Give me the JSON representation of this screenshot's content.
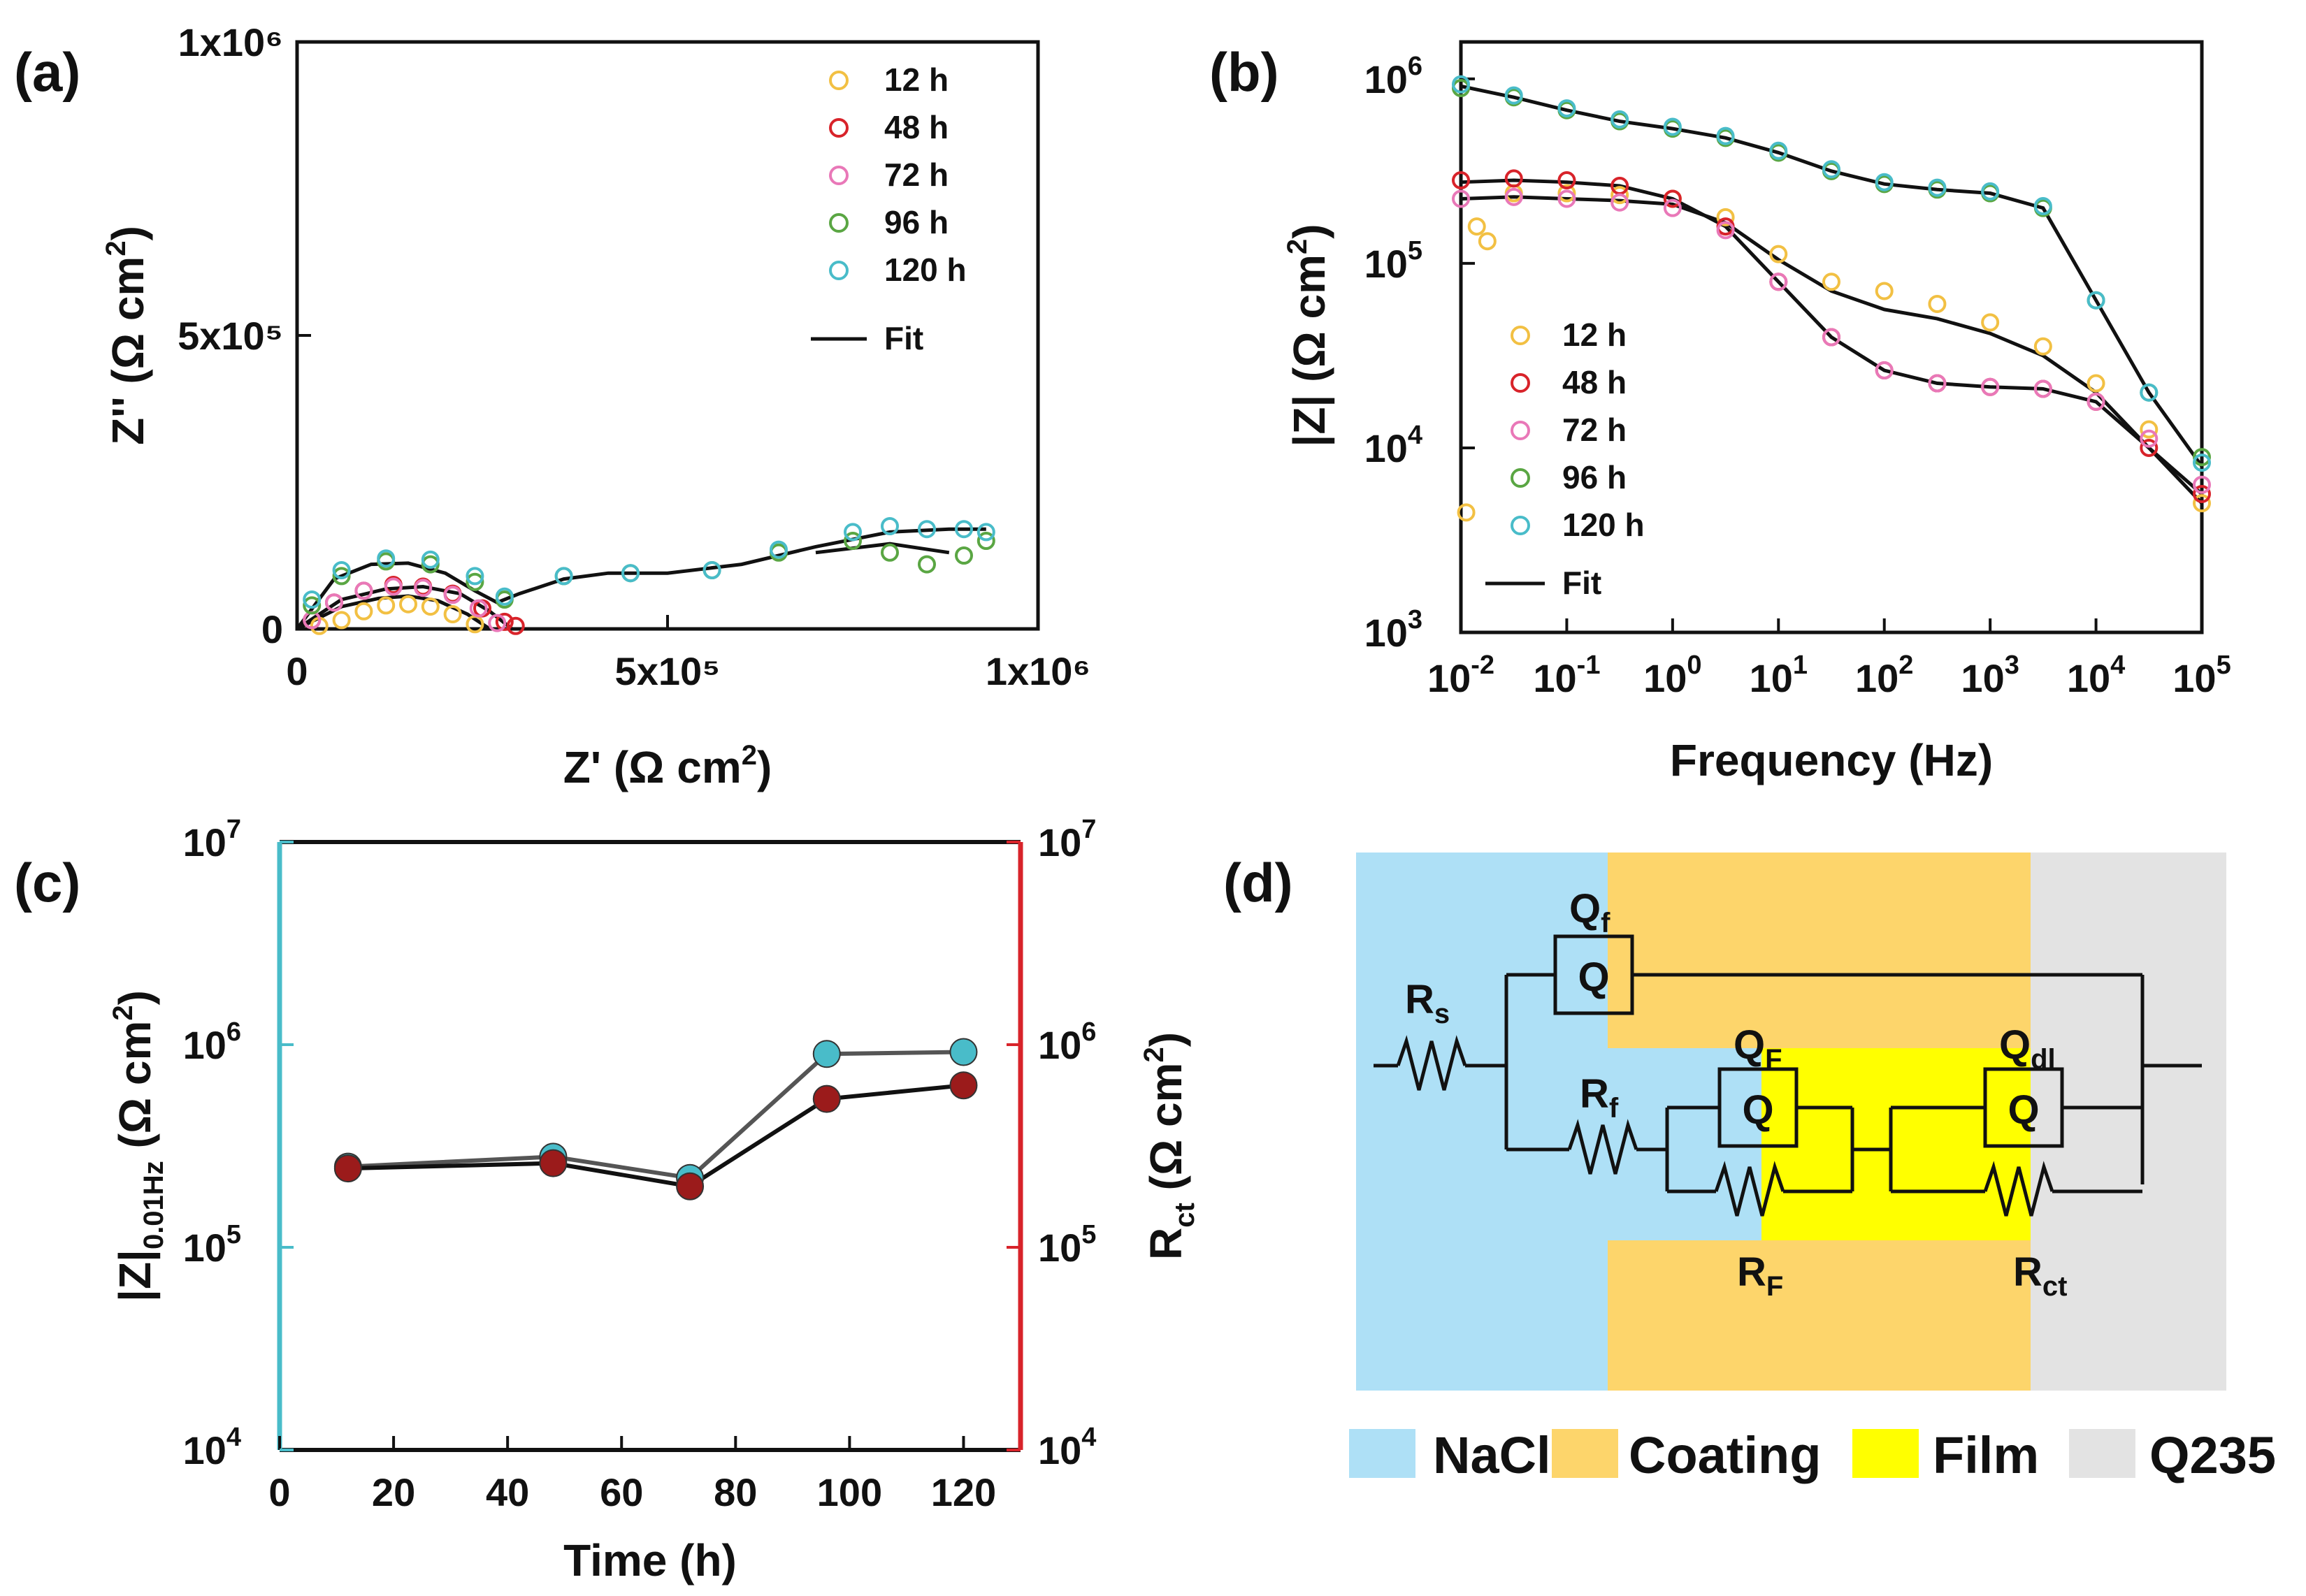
{
  "panels": {
    "a": "(a)",
    "b": "(b)",
    "c": "(c)",
    "d": "(d)"
  },
  "chart_data": [
    {
      "id": "a",
      "type": "scatter",
      "title": "",
      "xlabel": "Z' (Ω cm²)",
      "ylabel": "Z'' (Ω cm²)",
      "xlim": [
        0,
        1000000
      ],
      "ylim": [
        0,
        1000000
      ],
      "xticks": [
        {
          "v": 0,
          "label": "0"
        },
        {
          "v": 500000,
          "label": "5x10⁵"
        },
        {
          "v": 1000000,
          "label": "1x10⁶"
        }
      ],
      "yticks": [
        {
          "v": 0,
          "label": "0"
        },
        {
          "v": 500000,
          "label": "5x10⁵"
        },
        {
          "v": 1000000,
          "label": "1x10⁶"
        }
      ],
      "legend_position": "top-right",
      "fit_label": "Fit",
      "series": [
        {
          "name": "12 h",
          "color": "#f2c043",
          "x": [
            30000,
            60000,
            90000,
            120000,
            150000,
            180000,
            210000,
            240000
          ],
          "y": [
            5000,
            15000,
            30000,
            40000,
            42000,
            38000,
            25000,
            8000
          ]
        },
        {
          "name": "48 h",
          "color": "#d8232a",
          "x": [
            20000,
            50000,
            90000,
            130000,
            170000,
            210000,
            250000,
            280000,
            295000
          ],
          "y": [
            15000,
            45000,
            65000,
            75000,
            72000,
            60000,
            35000,
            12000,
            5000
          ]
        },
        {
          "name": "72 h",
          "color": "#e978b8",
          "x": [
            20000,
            50000,
            90000,
            130000,
            170000,
            210000,
            245000,
            270000
          ],
          "y": [
            15000,
            45000,
            65000,
            72000,
            70000,
            58000,
            35000,
            10000
          ]
        },
        {
          "name": "96 h",
          "color": "#5aa643",
          "x": [
            20000,
            60000,
            120000,
            180000,
            240000,
            280000,
            360000,
            450000,
            560000,
            650000,
            750000,
            800000,
            850000,
            900000,
            930000
          ],
          "y": [
            40000,
            90000,
            115000,
            110000,
            80000,
            50000,
            90000,
            95000,
            100000,
            130000,
            150000,
            130000,
            110000,
            125000,
            150000
          ]
        },
        {
          "name": "120 h",
          "color": "#49bcc9",
          "x": [
            20000,
            60000,
            120000,
            180000,
            240000,
            280000,
            360000,
            450000,
            560000,
            650000,
            750000,
            800000,
            850000,
            900000,
            930000
          ],
          "y": [
            50000,
            100000,
            120000,
            118000,
            90000,
            55000,
            90000,
            95000,
            100000,
            135000,
            165000,
            175000,
            170000,
            170000,
            165000
          ]
        }
      ],
      "fit_lines": [
        {
          "x": [
            0,
            50000,
            100000,
            150000,
            200000,
            240000,
            270000,
            300000,
            360000,
            420000,
            500000,
            600000,
            700000,
            800000,
            880000,
            930000
          ],
          "y": [
            0,
            85000,
            110000,
            112000,
            95000,
            65000,
            45000,
            60000,
            85000,
            95000,
            95000,
            110000,
            140000,
            165000,
            170000,
            170000
          ]
        },
        {
          "x": [
            0,
            60000,
            120000,
            170000,
            220000,
            260000,
            290000
          ],
          "y": [
            0,
            50000,
            68000,
            72000,
            60000,
            30000,
            0
          ]
        },
        {
          "x": [
            0,
            60000,
            110000,
            150000,
            190000,
            230000,
            260000
          ],
          "y": [
            0,
            38000,
            52000,
            56000,
            48000,
            25000,
            0
          ]
        },
        {
          "x": [
            700000,
            800000,
            880000
          ],
          "y": [
            130000,
            145000,
            130000
          ]
        }
      ]
    },
    {
      "id": "b",
      "type": "line",
      "title": "",
      "xlabel": "Frequency (Hz)",
      "ylabel": "|Z| (Ω cm²)",
      "xscale": "log",
      "yscale": "log",
      "xlim": [
        -2,
        5
      ],
      "ylim": [
        3,
        6.2
      ],
      "xticks": [
        {
          "v": -2,
          "base": "10",
          "exp": "-2"
        },
        {
          "v": -1,
          "base": "10",
          "exp": "-1"
        },
        {
          "v": 0,
          "base": "10",
          "exp": "0"
        },
        {
          "v": 1,
          "base": "10",
          "exp": "1"
        },
        {
          "v": 2,
          "base": "10",
          "exp": "2"
        },
        {
          "v": 3,
          "base": "10",
          "exp": "3"
        },
        {
          "v": 4,
          "base": "10",
          "exp": "4"
        },
        {
          "v": 5,
          "base": "10",
          "exp": "5"
        }
      ],
      "yticks": [
        {
          "v": 3,
          "base": "10",
          "exp": "3"
        },
        {
          "v": 4,
          "base": "10",
          "exp": "4"
        },
        {
          "v": 5,
          "base": "10",
          "exp": "5"
        },
        {
          "v": 6,
          "base": "10",
          "exp": "6"
        }
      ],
      "legend_position": "bottom-left",
      "fit_label": "Fit",
      "series": [
        {
          "name": "12 h",
          "color": "#f2c043",
          "x": [
            -1.95,
            -1.85,
            -1.75,
            -1.5,
            -1,
            -0.5,
            0,
            0.5,
            1,
            1.5,
            2,
            2.5,
            3,
            3.5,
            4,
            4.5,
            5
          ],
          "y": [
            3.65,
            5.2,
            5.12,
            5.38,
            5.38,
            5.37,
            5.35,
            5.25,
            5.05,
            4.9,
            4.85,
            4.78,
            4.68,
            4.55,
            4.35,
            4.1,
            3.7
          ]
        },
        {
          "name": "48 h",
          "color": "#d8232a",
          "x": [
            -2,
            -1.5,
            -1,
            -0.5,
            0,
            0.5,
            1,
            1.5,
            2,
            2.5,
            3,
            3.5,
            4,
            4.5,
            5
          ],
          "y": [
            5.45,
            5.46,
            5.45,
            5.42,
            5.35,
            5.2,
            4.9,
            4.6,
            4.42,
            4.35,
            4.33,
            4.32,
            4.25,
            4.0,
            3.75
          ]
        },
        {
          "name": "72 h",
          "color": "#e978b8",
          "x": [
            -2,
            -1.5,
            -1,
            -0.5,
            0,
            0.5,
            1,
            1.5,
            2,
            2.5,
            3,
            3.5,
            4,
            4.5,
            5
          ],
          "y": [
            5.35,
            5.36,
            5.35,
            5.33,
            5.3,
            5.18,
            4.9,
            4.6,
            4.42,
            4.35,
            4.33,
            4.32,
            4.25,
            4.05,
            3.8
          ]
        },
        {
          "name": "96 h",
          "color": "#5aa643",
          "x": [
            -2,
            -1.5,
            -1,
            -0.5,
            0,
            0.5,
            1,
            1.5,
            2,
            2.5,
            3,
            3.5,
            4,
            4.5,
            5
          ],
          "y": [
            5.95,
            5.9,
            5.83,
            5.77,
            5.73,
            5.68,
            5.6,
            5.5,
            5.43,
            5.4,
            5.38,
            5.3,
            4.8,
            4.3,
            3.95
          ]
        },
        {
          "name": "120 h",
          "color": "#49bcc9",
          "x": [
            -2,
            -1.5,
            -1,
            -0.5,
            0,
            0.5,
            1,
            1.5,
            2,
            2.5,
            3,
            3.5,
            4,
            4.5,
            5
          ],
          "y": [
            5.97,
            5.91,
            5.84,
            5.78,
            5.74,
            5.69,
            5.61,
            5.51,
            5.44,
            5.41,
            5.39,
            5.31,
            4.8,
            4.3,
            3.92
          ]
        }
      ],
      "fit_lines": [
        {
          "x": [
            -2,
            -1.5,
            -1,
            -0.5,
            0,
            0.5,
            1,
            1.5,
            2,
            2.5,
            3,
            3.5,
            4,
            4.5,
            5
          ],
          "y": [
            5.96,
            5.9,
            5.83,
            5.77,
            5.73,
            5.68,
            5.6,
            5.5,
            5.43,
            5.4,
            5.38,
            5.3,
            4.8,
            4.3,
            3.9
          ]
        },
        {
          "x": [
            -2,
            -1.5,
            -1,
            -0.5,
            0,
            0.5,
            1,
            1.5,
            2,
            2.5,
            3,
            3.5,
            4,
            4.5,
            5
          ],
          "y": [
            5.44,
            5.45,
            5.44,
            5.42,
            5.35,
            5.2,
            4.9,
            4.6,
            4.42,
            4.35,
            4.33,
            4.32,
            4.25,
            4.0,
            3.75
          ]
        },
        {
          "x": [
            -2,
            -1.5,
            -1,
            -0.5,
            0,
            0.5,
            1,
            1.5,
            2,
            2.5,
            3,
            3.5,
            4,
            4.5,
            5
          ],
          "y": [
            5.35,
            5.36,
            5.35,
            5.34,
            5.32,
            5.22,
            5.02,
            4.85,
            4.75,
            4.7,
            4.62,
            4.5,
            4.3,
            4.0,
            3.7
          ]
        }
      ]
    },
    {
      "id": "c",
      "type": "line",
      "title": "",
      "xlabel": "Time (h)",
      "ylabel_left": "|Z|",
      "ylabel_left_sub": "0.01Hz",
      "ylabel_left_unit": " (Ω cm²)",
      "ylabel_right": "R",
      "ylabel_right_sub": "ct",
      "ylabel_right_unit": " (Ω cm²)",
      "yscale": "log",
      "xlim": [
        0,
        130
      ],
      "ylim": [
        4,
        7
      ],
      "xticks": [
        0,
        20,
        40,
        60,
        80,
        100,
        120
      ],
      "yticks_left": [
        {
          "v": 4,
          "base": "10",
          "exp": "4"
        },
        {
          "v": 5,
          "base": "10",
          "exp": "5"
        },
        {
          "v": 6,
          "base": "10",
          "exp": "6"
        },
        {
          "v": 7,
          "base": "10",
          "exp": "7"
        }
      ],
      "yticks_right": [
        {
          "v": 4,
          "base": "10",
          "exp": "4"
        },
        {
          "v": 5,
          "base": "10",
          "exp": "5"
        },
        {
          "v": 6,
          "base": "10",
          "exp": "6"
        },
        {
          "v": 7,
          "base": "10",
          "exp": "7"
        }
      ],
      "left_color": "#49bcc9",
      "right_color": "#d8232a",
      "series": [
        {
          "name": "|Z|0.01Hz",
          "color": "#49bcc9",
          "x": [
            12,
            48,
            72,
            96,
            120
          ],
          "y": [
            250000,
            280000,
            220000,
            900000,
            920000
          ]
        },
        {
          "name": "Rct",
          "color": "#9b1b1b",
          "x": [
            12,
            48,
            72,
            96,
            120
          ],
          "y": [
            245000,
            260000,
            200000,
            540000,
            630000
          ]
        }
      ]
    }
  ],
  "circuit": {
    "labels": {
      "qf": "Q",
      "qf_sub": "f",
      "rs": "R",
      "rs_sub": "s",
      "rf": "R",
      "rf_sub": "f",
      "qF": "Q",
      "qF_sub": "F",
      "rF": "R",
      "rF_sub": "F",
      "qdl": "Q",
      "qdl_sub": "dl",
      "rct": "R",
      "rct_sub": "ct",
      "q_box": "Q"
    },
    "legend": [
      {
        "label": "NaCl",
        "color": "#aee0f6"
      },
      {
        "label": "Coating",
        "color": "#fdd56b"
      },
      {
        "label": "Film",
        "color": "#ffff00"
      },
      {
        "label": "Q235",
        "color": "#e3e3e3"
      }
    ]
  }
}
